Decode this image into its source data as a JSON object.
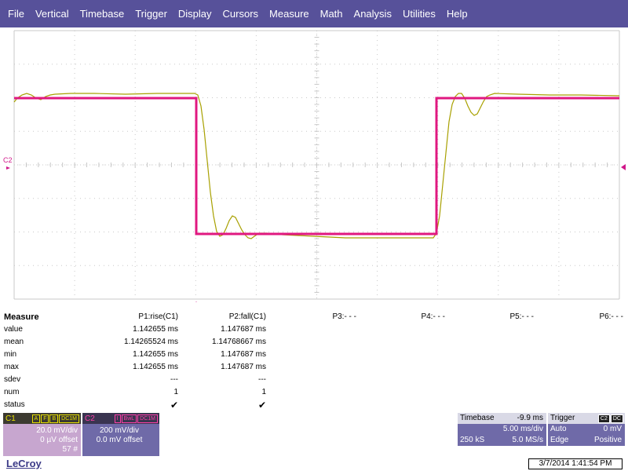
{
  "menu": [
    "File",
    "Vertical",
    "Timebase",
    "Trigger",
    "Display",
    "Cursors",
    "Measure",
    "Math",
    "Analysis",
    "Utilities",
    "Help"
  ],
  "grid": {
    "ch2_marker": "C2"
  },
  "colors": {
    "menu_bg": "#57519a",
    "ch1_trace": "#a8a000",
    "ch2_trace": "#e01880",
    "grid": "#c8c8c8"
  },
  "measure": {
    "title": "Measure",
    "row_labels": [
      "value",
      "mean",
      "min",
      "max",
      "sdev",
      "num",
      "status"
    ],
    "params": [
      {
        "header": "P1:rise(C1)",
        "values": [
          "1.142655 ms",
          "1.14265524 ms",
          "1.142655 ms",
          "1.142655 ms",
          "---",
          "1",
          "✔"
        ]
      },
      {
        "header": "P2:fall(C1)",
        "values": [
          "1.147687 ms",
          "1.14768667 ms",
          "1.147687 ms",
          "1.147687 ms",
          "---",
          "1",
          "✔"
        ]
      },
      {
        "header": "P3:- - -"
      },
      {
        "header": "P4:- - -"
      },
      {
        "header": "P5:- - -"
      },
      {
        "header": "P6:- - -"
      }
    ]
  },
  "ch1": {
    "name": "C1",
    "tags": [
      "A",
      "F",
      "B",
      "DC1M"
    ],
    "vdiv": "20.0 mV/div",
    "offset": "0 µV offset",
    "count": "57 #"
  },
  "ch2": {
    "name": "C2",
    "tags": [
      "I",
      "BwL",
      "DC1M"
    ],
    "vdiv": "200 mV/div",
    "offset": "0.0 mV offset"
  },
  "timebase": {
    "label": "Timebase",
    "delay": "-9.9 ms",
    "tdiv": "5.00 ms/div",
    "samples": "250 kS",
    "rate": "5.0 MS/s"
  },
  "trigger": {
    "label": "Trigger",
    "tags": [
      "C2",
      "DC"
    ],
    "mode": "Auto",
    "level": "0 mV",
    "type": "Edge",
    "slope": "Positive"
  },
  "footer": {
    "logo": "LeCroy",
    "datetime": "3/7/2014 1:41:54 PM"
  }
}
